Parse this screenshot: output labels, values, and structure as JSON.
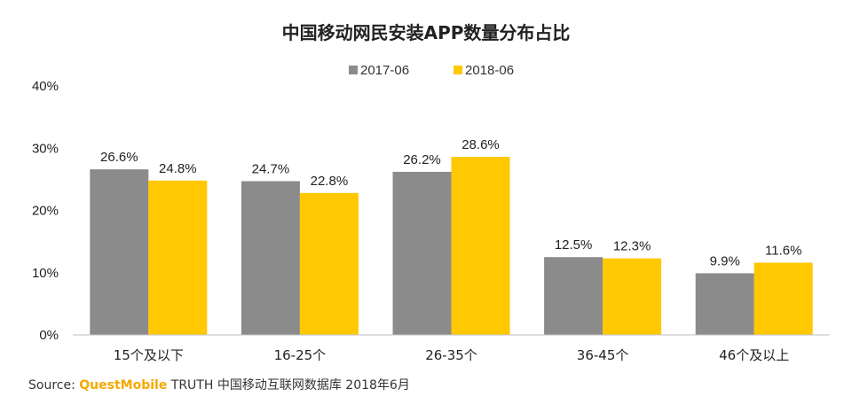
{
  "chart_data": {
    "type": "bar",
    "title": "中国移动网民安装APP数量分布占比",
    "categories": [
      "15个及以下",
      "16-25个",
      "26-35个",
      "36-45个",
      "46个及以上"
    ],
    "series": [
      {
        "name": "2017-06",
        "color": "#8c8b8b",
        "values": [
          26.6,
          24.7,
          26.2,
          12.5,
          9.9
        ]
      },
      {
        "name": "2018-06",
        "color": "#ffc800",
        "values": [
          24.8,
          22.8,
          28.6,
          12.3,
          11.6
        ]
      }
    ],
    "yticks": [
      "0%",
      "10%",
      "20%",
      "30%",
      "40%"
    ],
    "ylim": [
      0,
      40
    ],
    "value_suffix": "%",
    "legend_position": "top-center",
    "grid": false
  },
  "source": {
    "prefix": "Source:",
    "brand": "QuestMobile",
    "rest": "TRUTH 中国移动互联网数据库 2018年6月"
  }
}
